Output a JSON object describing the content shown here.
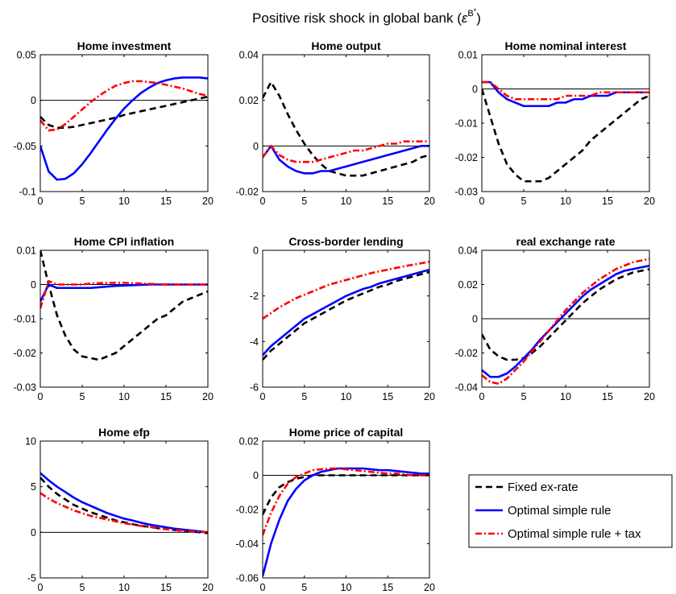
{
  "figure": {
    "title": "Positive risk shock in global bank",
    "title_symbol": "ε",
    "title_sup_base": "B",
    "title_sup_star": "*",
    "title_open": "(",
    "title_close": ")"
  },
  "legend": {
    "placement": "bottom-right",
    "entries": [
      {
        "label": "Fixed ex-rate",
        "color": "#000000",
        "style": "dashed"
      },
      {
        "label": "Optimal simple rule",
        "color": "#0000ff",
        "style": "solid"
      },
      {
        "label": "Optimal simple rule + tax",
        "color": "#ff0000",
        "style": "dashdot"
      }
    ]
  },
  "chart_data": [
    {
      "type": "line",
      "title": "Home investment",
      "xlim": [
        0,
        20
      ],
      "ylim": [
        -0.1,
        0.05
      ],
      "xticks": [
        "0",
        "5",
        "10",
        "15",
        "20"
      ],
      "yticks": [
        "-0.1",
        "-0.05",
        "0",
        "0.05"
      ],
      "zero_line": true,
      "x": [
        0,
        1,
        2,
        3,
        4,
        5,
        6,
        7,
        8,
        9,
        10,
        11,
        12,
        13,
        14,
        15,
        16,
        17,
        18,
        19,
        20
      ],
      "series": [
        {
          "name": "Fixed ex-rate",
          "values": [
            -0.018,
            -0.027,
            -0.03,
            -0.03,
            -0.029,
            -0.027,
            -0.025,
            -0.023,
            -0.021,
            -0.019,
            -0.016,
            -0.014,
            -0.012,
            -0.01,
            -0.008,
            -0.006,
            -0.004,
            -0.002,
            0.0,
            0.002,
            0.004
          ]
        },
        {
          "name": "Optimal simple rule",
          "values": [
            -0.05,
            -0.078,
            -0.087,
            -0.086,
            -0.08,
            -0.07,
            -0.058,
            -0.045,
            -0.032,
            -0.02,
            -0.009,
            0.0,
            0.008,
            0.014,
            0.019,
            0.022,
            0.024,
            0.025,
            0.025,
            0.025,
            0.024
          ]
        },
        {
          "name": "Optimal simple rule + tax",
          "values": [
            -0.022,
            -0.033,
            -0.032,
            -0.026,
            -0.018,
            -0.01,
            -0.002,
            0.005,
            0.011,
            0.016,
            0.019,
            0.021,
            0.021,
            0.02,
            0.019,
            0.017,
            0.015,
            0.013,
            0.01,
            0.007,
            0.005
          ]
        }
      ]
    },
    {
      "type": "line",
      "title": "Home output",
      "xlim": [
        0,
        20
      ],
      "ylim": [
        -0.02,
        0.04
      ],
      "xticks": [
        "0",
        "5",
        "10",
        "15",
        "20"
      ],
      "yticks": [
        "-0.02",
        "0",
        "0.02",
        "0.04"
      ],
      "zero_line": true,
      "x": [
        0,
        1,
        2,
        3,
        4,
        5,
        6,
        7,
        8,
        9,
        10,
        11,
        12,
        13,
        14,
        15,
        16,
        17,
        18,
        19,
        20
      ],
      "series": [
        {
          "name": "Fixed ex-rate",
          "values": [
            0.021,
            0.028,
            0.022,
            0.014,
            0.007,
            0.001,
            -0.004,
            -0.008,
            -0.011,
            -0.012,
            -0.013,
            -0.013,
            -0.013,
            -0.012,
            -0.011,
            -0.01,
            -0.009,
            -0.008,
            -0.007,
            -0.005,
            -0.004
          ]
        },
        {
          "name": "Optimal simple rule",
          "values": [
            -0.005,
            0.0,
            -0.006,
            -0.009,
            -0.011,
            -0.012,
            -0.012,
            -0.011,
            -0.011,
            -0.01,
            -0.009,
            -0.008,
            -0.007,
            -0.006,
            -0.005,
            -0.004,
            -0.003,
            -0.002,
            -0.001,
            0.0,
            0.0
          ]
        },
        {
          "name": "Optimal simple rule + tax",
          "values": [
            -0.005,
            0.0,
            -0.004,
            -0.006,
            -0.007,
            -0.007,
            -0.007,
            -0.006,
            -0.005,
            -0.004,
            -0.003,
            -0.002,
            -0.002,
            -0.001,
            0.0,
            0.001,
            0.001,
            0.002,
            0.002,
            0.002,
            0.002
          ]
        }
      ]
    },
    {
      "type": "line",
      "title": "Home nominal interest",
      "xlim": [
        0,
        20
      ],
      "ylim": [
        -0.03,
        0.01
      ],
      "xticks": [
        "0",
        "5",
        "10",
        "15",
        "20"
      ],
      "yticks": [
        "-0.03",
        "-0.02",
        "-0.01",
        "0",
        "0.01"
      ],
      "zero_line": true,
      "x": [
        0,
        1,
        2,
        3,
        4,
        5,
        6,
        7,
        8,
        9,
        10,
        11,
        12,
        13,
        14,
        15,
        16,
        17,
        18,
        19,
        20
      ],
      "series": [
        {
          "name": "Fixed ex-rate",
          "values": [
            0.0,
            -0.008,
            -0.016,
            -0.022,
            -0.025,
            -0.027,
            -0.027,
            -0.027,
            -0.026,
            -0.024,
            -0.022,
            -0.02,
            -0.018,
            -0.015,
            -0.013,
            -0.011,
            -0.009,
            -0.007,
            -0.005,
            -0.003,
            -0.002
          ]
        },
        {
          "name": "Optimal simple rule",
          "values": [
            0.002,
            0.002,
            -0.001,
            -0.003,
            -0.004,
            -0.005,
            -0.005,
            -0.005,
            -0.005,
            -0.004,
            -0.004,
            -0.003,
            -0.003,
            -0.002,
            -0.002,
            -0.002,
            -0.001,
            -0.001,
            -0.001,
            -0.001,
            -0.001
          ]
        },
        {
          "name": "Optimal simple rule + tax",
          "values": [
            0.002,
            0.002,
            0.0,
            -0.002,
            -0.003,
            -0.003,
            -0.003,
            -0.003,
            -0.003,
            -0.003,
            -0.002,
            -0.002,
            -0.002,
            -0.002,
            -0.001,
            -0.001,
            -0.001,
            -0.001,
            -0.001,
            -0.001,
            -0.001
          ]
        }
      ]
    },
    {
      "type": "line",
      "title": "Home CPI inflation",
      "xlim": [
        0,
        20
      ],
      "ylim": [
        -0.03,
        0.01
      ],
      "xticks": [
        "0",
        "5",
        "10",
        "15",
        "20"
      ],
      "yticks": [
        "-0.03",
        "-0.02",
        "-0.01",
        "0",
        "0.01"
      ],
      "zero_line": true,
      "x": [
        0,
        1,
        2,
        3,
        4,
        5,
        6,
        7,
        8,
        9,
        10,
        11,
        12,
        13,
        14,
        15,
        16,
        17,
        18,
        19,
        20
      ],
      "series": [
        {
          "name": "Fixed ex-rate",
          "values": [
            0.01,
            0.0,
            -0.009,
            -0.015,
            -0.019,
            -0.021,
            -0.0215,
            -0.022,
            -0.021,
            -0.02,
            -0.018,
            -0.016,
            -0.014,
            -0.012,
            -0.01,
            -0.009,
            -0.007,
            -0.005,
            -0.004,
            -0.003,
            -0.002
          ]
        },
        {
          "name": "Optimal simple rule",
          "values": [
            -0.005,
            0.0,
            -0.001,
            -0.001,
            -0.001,
            -0.001,
            -0.001,
            -0.0008,
            -0.0006,
            -0.0004,
            -0.0003,
            -0.0002,
            -0.0001,
            0.0,
            0.0,
            0.0,
            0.0,
            0.0,
            0.0,
            0.0,
            0.0
          ]
        },
        {
          "name": "Optimal simple rule + tax",
          "values": [
            -0.007,
            0.001,
            0.0,
            0.0,
            0.0,
            0.0,
            0.0003,
            0.0004,
            0.0005,
            0.0005,
            0.0005,
            0.0004,
            0.0003,
            0.0002,
            0.0001,
            0.0,
            0.0,
            0.0,
            0.0,
            0.0,
            0.0
          ]
        }
      ]
    },
    {
      "type": "line",
      "title": "Cross-border lending",
      "xlim": [
        0,
        20
      ],
      "ylim": [
        -6,
        0
      ],
      "xticks": [
        "0",
        "5",
        "10",
        "15",
        "20"
      ],
      "yticks": [
        "-6",
        "-4",
        "-2",
        "0"
      ],
      "zero_line": false,
      "x": [
        0,
        1,
        2,
        3,
        4,
        5,
        6,
        7,
        8,
        9,
        10,
        11,
        12,
        13,
        14,
        15,
        16,
        17,
        18,
        19,
        20
      ],
      "series": [
        {
          "name": "Fixed ex-rate",
          "values": [
            -4.8,
            -4.4,
            -4.1,
            -3.8,
            -3.5,
            -3.2,
            -3.0,
            -2.8,
            -2.6,
            -2.4,
            -2.2,
            -2.05,
            -1.9,
            -1.75,
            -1.6,
            -1.5,
            -1.35,
            -1.25,
            -1.15,
            -1.05,
            -0.95
          ]
        },
        {
          "name": "Optimal simple rule",
          "values": [
            -4.6,
            -4.2,
            -3.9,
            -3.6,
            -3.3,
            -3.0,
            -2.8,
            -2.6,
            -2.4,
            -2.2,
            -2.0,
            -1.85,
            -1.7,
            -1.6,
            -1.45,
            -1.35,
            -1.25,
            -1.15,
            -1.05,
            -0.95,
            -0.85
          ]
        },
        {
          "name": "Optimal simple rule + tax",
          "values": [
            -3.0,
            -2.75,
            -2.5,
            -2.3,
            -2.1,
            -1.95,
            -1.8,
            -1.65,
            -1.5,
            -1.4,
            -1.3,
            -1.2,
            -1.1,
            -1.0,
            -0.92,
            -0.85,
            -0.77,
            -0.7,
            -0.63,
            -0.57,
            -0.5
          ]
        }
      ]
    },
    {
      "type": "line",
      "title": "real exchange rate",
      "xlim": [
        0,
        20
      ],
      "ylim": [
        -0.04,
        0.04
      ],
      "xticks": [
        "0",
        "5",
        "10",
        "15",
        "20"
      ],
      "yticks": [
        "-0.04",
        "-0.02",
        "0",
        "0.02",
        "0.04"
      ],
      "zero_line": true,
      "x": [
        0,
        1,
        2,
        3,
        4,
        5,
        6,
        7,
        8,
        9,
        10,
        11,
        12,
        13,
        14,
        15,
        16,
        17,
        18,
        19,
        20
      ],
      "series": [
        {
          "name": "Fixed ex-rate",
          "values": [
            -0.009,
            -0.018,
            -0.022,
            -0.024,
            -0.024,
            -0.023,
            -0.02,
            -0.016,
            -0.011,
            -0.006,
            -0.001,
            0.004,
            0.009,
            0.013,
            0.017,
            0.02,
            0.023,
            0.025,
            0.027,
            0.028,
            0.029
          ]
        },
        {
          "name": "Optimal simple rule",
          "values": [
            -0.03,
            -0.034,
            -0.034,
            -0.032,
            -0.028,
            -0.023,
            -0.018,
            -0.012,
            -0.007,
            -0.002,
            0.003,
            0.008,
            0.013,
            0.017,
            0.02,
            0.023,
            0.026,
            0.028,
            0.029,
            0.03,
            0.031
          ]
        },
        {
          "name": "Optimal simple rule + tax",
          "values": [
            -0.033,
            -0.037,
            -0.038,
            -0.035,
            -0.03,
            -0.025,
            -0.019,
            -0.013,
            -0.007,
            -0.001,
            0.005,
            0.01,
            0.015,
            0.019,
            0.023,
            0.026,
            0.029,
            0.031,
            0.033,
            0.034,
            0.035
          ]
        }
      ]
    },
    {
      "type": "line",
      "title": "Home efp",
      "xlim": [
        0,
        20
      ],
      "ylim": [
        -5,
        10
      ],
      "xticks": [
        "0",
        "5",
        "10",
        "15",
        "20"
      ],
      "yticks": [
        "-5",
        "0",
        "5",
        "10"
      ],
      "zero_line": true,
      "x": [
        0,
        1,
        2,
        3,
        4,
        5,
        6,
        7,
        8,
        9,
        10,
        11,
        12,
        13,
        14,
        15,
        16,
        17,
        18,
        19,
        20
      ],
      "series": [
        {
          "name": "Fixed ex-rate",
          "values": [
            6.0,
            5.0,
            4.2,
            3.6,
            3.0,
            2.6,
            2.2,
            1.9,
            1.6,
            1.3,
            1.1,
            0.9,
            0.7,
            0.6,
            0.45,
            0.35,
            0.25,
            0.15,
            0.08,
            0.0,
            -0.1
          ]
        },
        {
          "name": "Optimal simple rule",
          "values": [
            6.5,
            5.7,
            5.0,
            4.4,
            3.8,
            3.3,
            2.9,
            2.5,
            2.1,
            1.8,
            1.5,
            1.3,
            1.05,
            0.85,
            0.7,
            0.55,
            0.4,
            0.3,
            0.2,
            0.1,
            0.0
          ]
        },
        {
          "name": "Optimal simple rule + tax",
          "values": [
            4.3,
            3.7,
            3.2,
            2.8,
            2.4,
            2.1,
            1.8,
            1.6,
            1.4,
            1.2,
            1.0,
            0.85,
            0.7,
            0.6,
            0.45,
            0.35,
            0.25,
            0.18,
            0.1,
            0.05,
            0.0
          ]
        }
      ]
    },
    {
      "type": "line",
      "title": "Home price of capital",
      "xlim": [
        0,
        20
      ],
      "ylim": [
        -0.06,
        0.02
      ],
      "xticks": [
        "0",
        "5",
        "10",
        "15",
        "20"
      ],
      "yticks": [
        "-0.06",
        "-0.04",
        "-0.02",
        "0",
        "0.02"
      ],
      "zero_line": true,
      "x": [
        0,
        1,
        2,
        3,
        4,
        5,
        6,
        7,
        8,
        9,
        10,
        11,
        12,
        13,
        14,
        15,
        16,
        17,
        18,
        19,
        20
      ],
      "series": [
        {
          "name": "Fixed ex-rate",
          "values": [
            -0.023,
            -0.013,
            -0.007,
            -0.004,
            -0.002,
            -0.001,
            0.0,
            0.0,
            0.0,
            0.0,
            0.0,
            0.0,
            0.0,
            0.0,
            0.0,
            0.0,
            0.0,
            0.0,
            0.0,
            0.0,
            0.0
          ]
        },
        {
          "name": "Optimal simple rule",
          "values": [
            -0.059,
            -0.04,
            -0.026,
            -0.015,
            -0.008,
            -0.003,
            0.0,
            0.002,
            0.003,
            0.004,
            0.004,
            0.004,
            0.004,
            0.0035,
            0.003,
            0.003,
            0.0025,
            0.002,
            0.0015,
            0.001,
            0.001
          ]
        },
        {
          "name": "Optimal simple rule + tax",
          "values": [
            -0.035,
            -0.022,
            -0.012,
            -0.005,
            -0.001,
            0.001,
            0.003,
            0.0035,
            0.004,
            0.004,
            0.0035,
            0.003,
            0.0025,
            0.002,
            0.0015,
            0.001,
            0.001,
            0.0005,
            0.0,
            0.0,
            0.0
          ]
        }
      ]
    }
  ]
}
